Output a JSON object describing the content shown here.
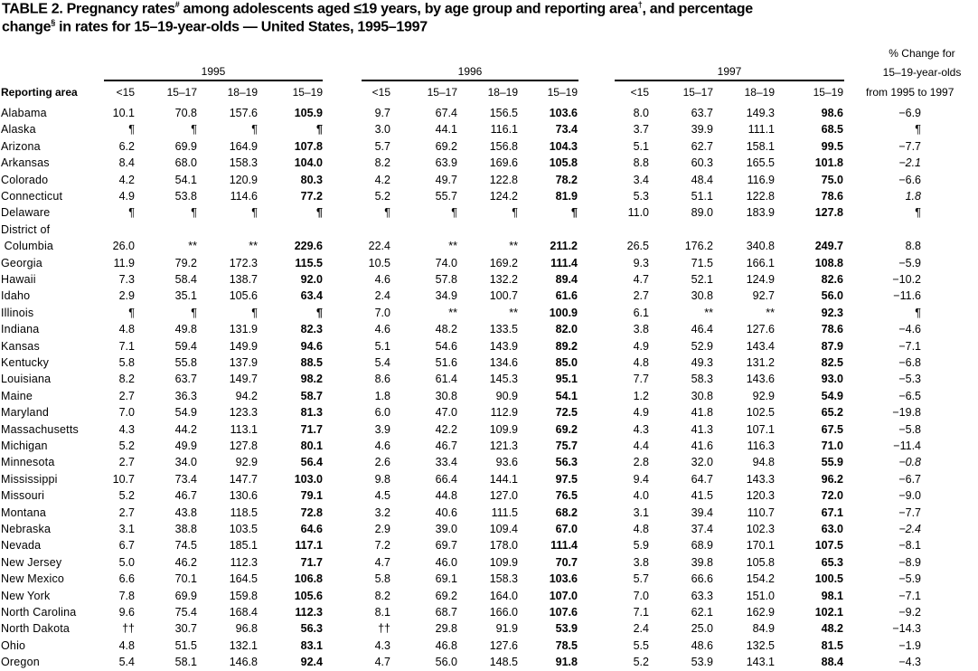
{
  "title": {
    "line1_a": "TABLE 2. Pregnancy rates",
    "fn1": "#",
    "line1_b": " among adolescents aged  ≤19 years, by age group and reporting area",
    "fn2": "†",
    "line1_c": ", and percentage",
    "line2_a": "change",
    "fn3": "§",
    "line2_b": " in rates for 15–19-year-olds — United States, 1995–1997"
  },
  "header": {
    "years": [
      "1995",
      "1996",
      "1997"
    ],
    "reporting_area": "Reporting area",
    "age_groups": [
      "<15",
      "15–17",
      "18–19",
      "15–19"
    ],
    "pct_change": [
      "% Change for",
      "15–19-year-olds",
      "from 1995 to 1997"
    ]
  },
  "rows": [
    {
      "name": "Alabama",
      "v": [
        "10.1",
        "70.8",
        "157.6",
        "105.9",
        "9.7",
        "67.4",
        "156.5",
        "103.6",
        "8.0",
        "63.7",
        "149.3",
        "98.6"
      ],
      "pct": "−6.9"
    },
    {
      "name": "Alaska",
      "v": [
        "¶",
        "¶",
        "¶",
        "¶",
        "3.0",
        "44.1",
        "116.1",
        "73.4",
        "3.7",
        "39.9",
        "111.1",
        "68.5"
      ],
      "pct": "¶"
    },
    {
      "name": "Arizona",
      "v": [
        "6.2",
        "69.9",
        "164.9",
        "107.8",
        "5.7",
        "69.2",
        "156.8",
        "104.3",
        "5.1",
        "62.7",
        "158.1",
        "99.5"
      ],
      "pct": "−7.7"
    },
    {
      "name": "Arkansas",
      "v": [
        "8.4",
        "68.0",
        "158.3",
        "104.0",
        "8.2",
        "63.9",
        "169.6",
        "105.8",
        "8.8",
        "60.3",
        "165.5",
        "101.8"
      ],
      "pct": "−2.1",
      "italic": true
    },
    {
      "name": "Colorado",
      "v": [
        "4.2",
        "54.1",
        "120.9",
        "80.3",
        "4.2",
        "49.7",
        "122.8",
        "78.2",
        "3.4",
        "48.4",
        "116.9",
        "75.0"
      ],
      "pct": "−6.6"
    },
    {
      "name": "Connecticut",
      "v": [
        "4.9",
        "53.8",
        "114.6",
        "77.2",
        "5.2",
        "55.7",
        "124.2",
        "81.9",
        "5.3",
        "51.1",
        "122.8",
        "78.6"
      ],
      "pct": "1.8",
      "italic": true
    },
    {
      "name": "Delaware",
      "v": [
        "¶",
        "¶",
        "¶",
        "¶",
        "¶",
        "¶",
        "¶",
        "¶",
        "11.0",
        "89.0",
        "183.9",
        "127.8"
      ],
      "pct": "¶"
    },
    {
      "name": "District of",
      "name2": " Columbia",
      "v": [
        "26.0",
        "**",
        "**",
        "229.6",
        "22.4",
        "**",
        "**",
        "211.2",
        "26.5",
        "176.2",
        "340.8",
        "249.7"
      ],
      "pct": "8.8"
    },
    {
      "name": "Georgia",
      "v": [
        "11.9",
        "79.2",
        "172.3",
        "115.5",
        "10.5",
        "74.0",
        "169.2",
        "111.4",
        "9.3",
        "71.5",
        "166.1",
        "108.8"
      ],
      "pct": "−5.9"
    },
    {
      "name": "Hawaii",
      "v": [
        "7.3",
        "58.4",
        "138.7",
        "92.0",
        "4.6",
        "57.8",
        "132.2",
        "89.4",
        "4.7",
        "52.1",
        "124.9",
        "82.6"
      ],
      "pct": "−10.2"
    },
    {
      "name": "Idaho",
      "v": [
        "2.9",
        "35.1",
        "105.6",
        "63.4",
        "2.4",
        "34.9",
        "100.7",
        "61.6",
        "2.7",
        "30.8",
        "92.7",
        "56.0"
      ],
      "pct": "−11.6"
    },
    {
      "name": "Illinois",
      "v": [
        "¶",
        "¶",
        "¶",
        "¶",
        "7.0",
        "**",
        "**",
        "100.9",
        "6.1",
        "**",
        "**",
        "92.3"
      ],
      "pct": "¶"
    },
    {
      "name": "Indiana",
      "v": [
        "4.8",
        "49.8",
        "131.9",
        "82.3",
        "4.6",
        "48.2",
        "133.5",
        "82.0",
        "3.8",
        "46.4",
        "127.6",
        "78.6"
      ],
      "pct": "−4.6"
    },
    {
      "name": "Kansas",
      "v": [
        "7.1",
        "59.4",
        "149.9",
        "94.6",
        "5.1",
        "54.6",
        "143.9",
        "89.2",
        "4.9",
        "52.9",
        "143.4",
        "87.9"
      ],
      "pct": "−7.1"
    },
    {
      "name": "Kentucky",
      "v": [
        "5.8",
        "55.8",
        "137.9",
        "88.5",
        "5.4",
        "51.6",
        "134.6",
        "85.0",
        "4.8",
        "49.3",
        "131.2",
        "82.5"
      ],
      "pct": "−6.8"
    },
    {
      "name": "Louisiana",
      "v": [
        "8.2",
        "63.7",
        "149.7",
        "98.2",
        "8.6",
        "61.4",
        "145.3",
        "95.1",
        "7.7",
        "58.3",
        "143.6",
        "93.0"
      ],
      "pct": "−5.3"
    },
    {
      "name": "Maine",
      "v": [
        "2.7",
        "36.3",
        "94.2",
        "58.7",
        "1.8",
        "30.8",
        "90.9",
        "54.1",
        "1.2",
        "30.8",
        "92.9",
        "54.9"
      ],
      "pct": "−6.5"
    },
    {
      "name": "Maryland",
      "v": [
        "7.0",
        "54.9",
        "123.3",
        "81.3",
        "6.0",
        "47.0",
        "112.9",
        "72.5",
        "4.9",
        "41.8",
        "102.5",
        "65.2"
      ],
      "pct": "−19.8"
    },
    {
      "name": "Massachusetts",
      "v": [
        "4.3",
        "44.2",
        "113.1",
        "71.7",
        "3.9",
        "42.2",
        "109.9",
        "69.2",
        "4.3",
        "41.3",
        "107.1",
        "67.5"
      ],
      "pct": "−5.8"
    },
    {
      "name": "Michigan",
      "v": [
        "5.2",
        "49.9",
        "127.8",
        "80.1",
        "4.6",
        "46.7",
        "121.3",
        "75.7",
        "4.4",
        "41.6",
        "116.3",
        "71.0"
      ],
      "pct": "−11.4"
    },
    {
      "name": "Minnesota",
      "v": [
        "2.7",
        "34.0",
        "92.9",
        "56.4",
        "2.6",
        "33.4",
        "93.6",
        "56.3",
        "2.8",
        "32.0",
        "94.8",
        "55.9"
      ],
      "pct": "−0.8",
      "italic": true
    },
    {
      "name": "Mississippi",
      "v": [
        "10.7",
        "73.4",
        "147.7",
        "103.0",
        "9.8",
        "66.4",
        "144.1",
        "97.5",
        "9.4",
        "64.7",
        "143.3",
        "96.2"
      ],
      "pct": "−6.7"
    },
    {
      "name": "Missouri",
      "v": [
        "5.2",
        "46.7",
        "130.6",
        "79.1",
        "4.5",
        "44.8",
        "127.0",
        "76.5",
        "4.0",
        "41.5",
        "120.3",
        "72.0"
      ],
      "pct": "−9.0"
    },
    {
      "name": "Montana",
      "v": [
        "2.7",
        "43.8",
        "118.5",
        "72.8",
        "3.2",
        "40.6",
        "111.5",
        "68.2",
        "3.1",
        "39.4",
        "110.7",
        "67.1"
      ],
      "pct": "−7.7"
    },
    {
      "name": "Nebraska",
      "v": [
        "3.1",
        "38.8",
        "103.5",
        "64.6",
        "2.9",
        "39.0",
        "109.4",
        "67.0",
        "4.8",
        "37.4",
        "102.3",
        "63.0"
      ],
      "pct": "−2.4",
      "italic": true
    },
    {
      "name": "Nevada",
      "v": [
        "6.7",
        "74.5",
        "185.1",
        "117.1",
        "7.2",
        "69.7",
        "178.0",
        "111.4",
        "5.9",
        "68.9",
        "170.1",
        "107.5"
      ],
      "pct": "−8.1"
    },
    {
      "name": "New Jersey",
      "v": [
        "5.0",
        "46.2",
        "112.3",
        "71.7",
        "4.7",
        "46.0",
        "109.9",
        "70.7",
        "3.8",
        "39.8",
        "105.8",
        "65.3"
      ],
      "pct": "−8.9"
    },
    {
      "name": "New Mexico",
      "v": [
        "6.6",
        "70.1",
        "164.5",
        "106.8",
        "5.8",
        "69.1",
        "158.3",
        "103.6",
        "5.7",
        "66.6",
        "154.2",
        "100.5"
      ],
      "pct": "−5.9"
    },
    {
      "name": "New York",
      "v": [
        "7.8",
        "69.9",
        "159.8",
        "105.6",
        "8.2",
        "69.2",
        "164.0",
        "107.0",
        "7.0",
        "63.3",
        "151.0",
        "98.1"
      ],
      "pct": "−7.1"
    },
    {
      "name": "North Carolina",
      "v": [
        "9.6",
        "75.4",
        "168.4",
        "112.3",
        "8.1",
        "68.7",
        "166.0",
        "107.6",
        "7.1",
        "62.1",
        "162.9",
        "102.1"
      ],
      "pct": "−9.2"
    },
    {
      "name": "North Dakota",
      "v": [
        "††",
        "30.7",
        "96.8",
        "56.3",
        "††",
        "29.8",
        "91.9",
        "53.9",
        "2.4",
        "25.0",
        "84.9",
        "48.2"
      ],
      "pct": "−14.3"
    },
    {
      "name": "Ohio",
      "v": [
        "4.8",
        "51.5",
        "132.1",
        "83.1",
        "4.3",
        "46.8",
        "127.6",
        "78.5",
        "5.5",
        "48.6",
        "132.5",
        "81.5"
      ],
      "pct": "−1.9"
    },
    {
      "name": "Oregon",
      "v": [
        "5.4",
        "58.1",
        "146.8",
        "92.4",
        "4.7",
        "56.0",
        "148.5",
        "91.8",
        "5.2",
        "53.9",
        "143.1",
        "88.4"
      ],
      "pct": "−4.3"
    }
  ]
}
